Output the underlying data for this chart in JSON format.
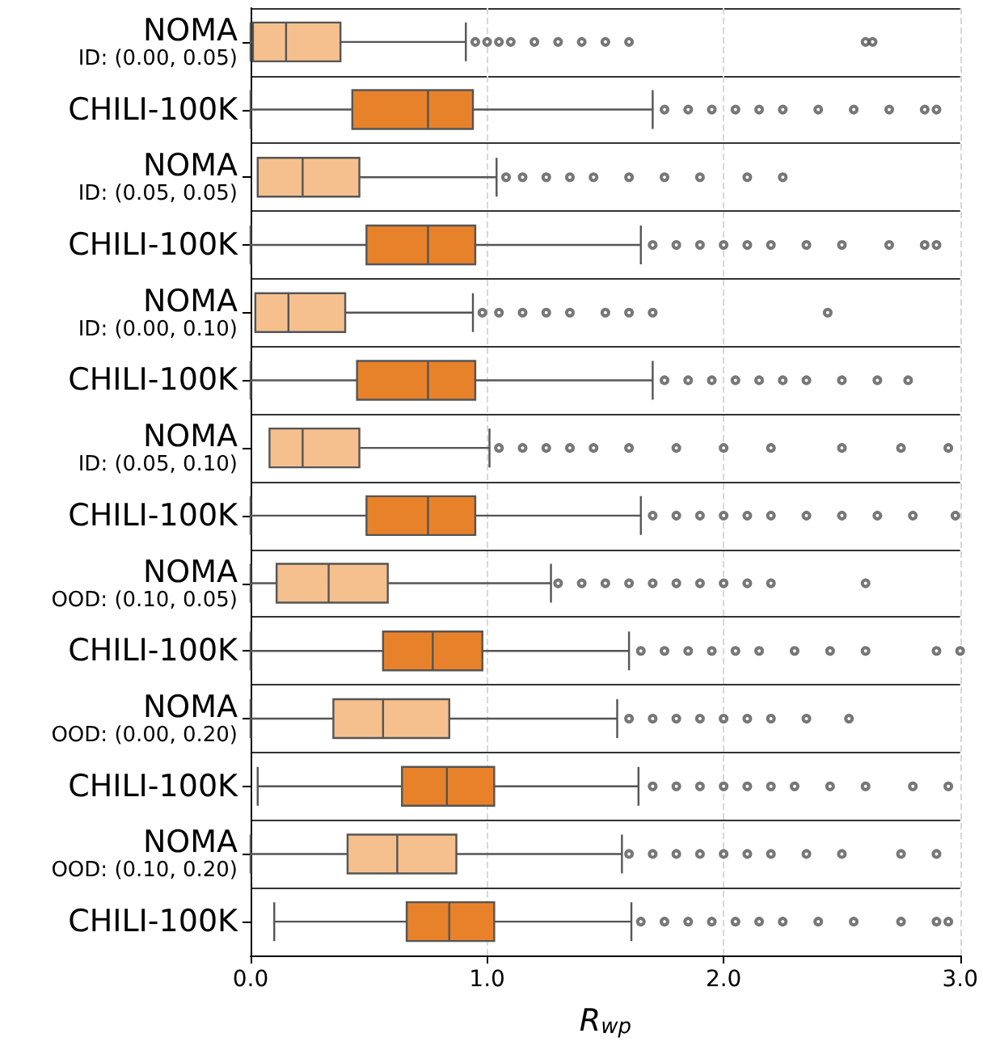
{
  "chart_data": {
    "type": "box",
    "orientation": "horizontal",
    "xlabel": "R$_{wp}$",
    "categories": [
      "NOMA\nID: (0.00, 0.05)",
      "CHILI-100K",
      "NOMA\nID: (0.05, 0.05)",
      "CHILI-100K",
      "NOMA\nID: (0.00, 0.10)",
      "CHILI-100K",
      "NOMA\nID: (0.05, 0.10)",
      "CHILI-100K",
      "NOMA\nOOD: (0.10, 0.05)",
      "CHILI-100K",
      "NOMA\nOOD: (0.00, 0.20)",
      "CHILI-100K",
      "NOMA\nOOD: (0.10, 0.20)",
      "CHILI-100K"
    ],
    "colors": [
      "#f5c08e",
      "#e8822a",
      "#f5c08e",
      "#e8822a",
      "#f5c08e",
      "#e8822a",
      "#f5c08e",
      "#e8822a",
      "#f5c08e",
      "#e8822a",
      "#f5c08e",
      "#e8822a",
      "#f5c08e",
      "#e8822a"
    ],
    "boxes": [
      {
        "low": 0,
        "q1": 0.01,
        "median": 0.15,
        "q3": 0.38,
        "high": 0.91,
        "outliers": [
          0.95,
          1.0,
          1.05,
          1.1,
          1.2,
          1.3,
          1.4,
          1.5,
          1.6,
          2.6,
          2.63
        ]
      },
      {
        "low": 0,
        "q1": 0.43,
        "median": 0.75,
        "q3": 0.94,
        "high": 1.7,
        "outliers": [
          1.75,
          1.85,
          1.95,
          2.05,
          2.15,
          2.25,
          2.4,
          2.55,
          2.7,
          2.85,
          2.9
        ]
      },
      {
        "low": 0.03,
        "q1": 0.03,
        "median": 0.22,
        "q3": 0.46,
        "high": 1.04,
        "outliers": [
          1.08,
          1.15,
          1.25,
          1.35,
          1.45,
          1.6,
          1.75,
          1.9,
          2.1,
          2.25
        ]
      },
      {
        "low": 0,
        "q1": 0.49,
        "median": 0.75,
        "q3": 0.95,
        "high": 1.65,
        "outliers": [
          1.7,
          1.8,
          1.9,
          2.0,
          2.1,
          2.2,
          2.35,
          2.5,
          2.7,
          2.85,
          2.9
        ]
      },
      {
        "low": 0.02,
        "q1": 0.02,
        "median": 0.16,
        "q3": 0.4,
        "high": 0.94,
        "outliers": [
          0.98,
          1.05,
          1.15,
          1.25,
          1.35,
          1.5,
          1.6,
          1.7,
          2.44
        ]
      },
      {
        "low": 0,
        "q1": 0.45,
        "median": 0.75,
        "q3": 0.95,
        "high": 1.7,
        "outliers": [
          1.75,
          1.85,
          1.95,
          2.05,
          2.15,
          2.25,
          2.35,
          2.5,
          2.65,
          2.78
        ]
      },
      {
        "low": 0.08,
        "q1": 0.08,
        "median": 0.22,
        "q3": 0.46,
        "high": 1.01,
        "outliers": [
          1.05,
          1.15,
          1.25,
          1.35,
          1.45,
          1.6,
          1.8,
          2.0,
          2.2,
          2.5,
          2.75,
          2.95
        ]
      },
      {
        "low": 0,
        "q1": 0.49,
        "median": 0.75,
        "q3": 0.95,
        "high": 1.65,
        "outliers": [
          1.7,
          1.8,
          1.9,
          2.0,
          2.1,
          2.2,
          2.35,
          2.5,
          2.65,
          2.8,
          2.98
        ]
      },
      {
        "low": 0,
        "q1": 0.11,
        "median": 0.33,
        "q3": 0.58,
        "high": 1.27,
        "outliers": [
          1.3,
          1.4,
          1.5,
          1.6,
          1.7,
          1.8,
          1.9,
          2.0,
          2.1,
          2.2,
          2.6
        ]
      },
      {
        "low": 0,
        "q1": 0.56,
        "median": 0.77,
        "q3": 0.98,
        "high": 1.6,
        "outliers": [
          1.65,
          1.75,
          1.85,
          1.95,
          2.05,
          2.15,
          2.3,
          2.45,
          2.6,
          2.9,
          3.0
        ]
      },
      {
        "low": 0,
        "q1": 0.35,
        "median": 0.56,
        "q3": 0.84,
        "high": 1.55,
        "outliers": [
          1.6,
          1.7,
          1.8,
          1.9,
          2.0,
          2.1,
          2.2,
          2.35,
          2.53
        ]
      },
      {
        "low": 0.03,
        "q1": 0.64,
        "median": 0.83,
        "q3": 1.03,
        "high": 1.64,
        "outliers": [
          1.7,
          1.8,
          1.9,
          2.0,
          2.1,
          2.2,
          2.3,
          2.45,
          2.6,
          2.8,
          2.95
        ]
      },
      {
        "low": 0,
        "q1": 0.41,
        "median": 0.62,
        "q3": 0.87,
        "high": 1.57,
        "outliers": [
          1.6,
          1.7,
          1.8,
          1.9,
          2.0,
          2.1,
          2.2,
          2.35,
          2.5,
          2.75,
          2.9
        ]
      },
      {
        "low": 0.1,
        "q1": 0.66,
        "median": 0.84,
        "q3": 1.03,
        "high": 1.61,
        "outliers": [
          1.65,
          1.75,
          1.85,
          1.95,
          2.05,
          2.15,
          2.25,
          2.4,
          2.55,
          2.75,
          2.9,
          2.95
        ]
      }
    ],
    "xlim": [
      0,
      3
    ],
    "xticks": [
      {
        "value": 0,
        "label": "0.0"
      },
      {
        "value": 1,
        "label": "1.0"
      },
      {
        "value": 2,
        "label": "2.0"
      },
      {
        "value": 3,
        "label": "3.0"
      }
    ],
    "grid": "x"
  }
}
